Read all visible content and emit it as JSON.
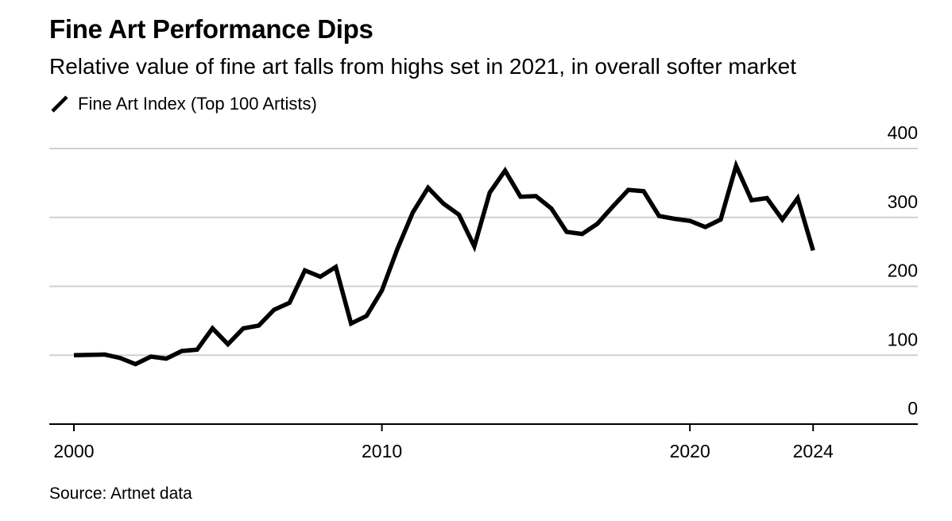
{
  "chart_data": {
    "type": "line",
    "title": "Fine Art Performance Dips",
    "subtitle": "Relative value of fine art falls from highs set in 2021, in overall softer market",
    "legend": [
      "Fine Art Index (Top 100 Artists)"
    ],
    "source": "Source: Artnet data",
    "xlabel": "",
    "ylabel": "",
    "xlim": [
      1999.2,
      2027.4
    ],
    "ylim": [
      0,
      400
    ],
    "xticks": [
      2000,
      2010,
      2020,
      2024
    ],
    "yticks": [
      0,
      100,
      200,
      300,
      400
    ],
    "grid": true,
    "line_color": "#000000",
    "series": [
      {
        "name": "Fine Art Index (Top 100 Artists)",
        "x": [
          2000,
          2001,
          2001.5,
          2002,
          2002.5,
          2003,
          2003.5,
          2004,
          2004.5,
          2005,
          2005.5,
          2006,
          2006.5,
          2007,
          2007.5,
          2008,
          2008.5,
          2009,
          2009.5,
          2010,
          2010.5,
          2011,
          2011.5,
          2012,
          2012.5,
          2013,
          2013.5,
          2014,
          2014.5,
          2015,
          2015.5,
          2016,
          2016.5,
          2017,
          2017.5,
          2018,
          2018.5,
          2019,
          2019.5,
          2020,
          2020.5,
          2021,
          2021.5,
          2022,
          2022.5,
          2023,
          2023.5,
          2024
        ],
        "values": [
          100,
          101,
          96,
          87,
          98,
          95,
          106,
          108,
          139,
          116,
          139,
          143,
          166,
          176,
          223,
          214,
          228,
          146,
          157,
          194,
          254,
          307,
          343,
          320,
          304,
          258,
          336,
          368,
          330,
          331,
          313,
          279,
          276,
          291,
          316,
          340,
          338,
          302,
          298,
          295,
          286,
          297,
          375,
          325,
          328,
          297,
          328,
          252
        ]
      }
    ]
  }
}
